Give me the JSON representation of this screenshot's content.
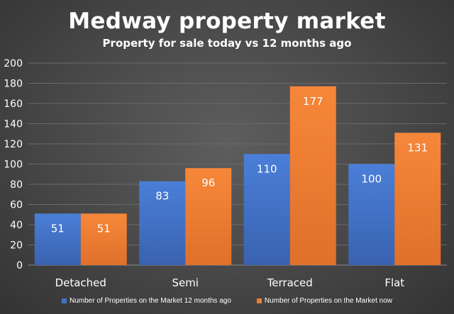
{
  "chart_data": {
    "type": "bar",
    "title": "Medway property market",
    "subtitle": "Property for sale today vs 12 months ago",
    "xlabel": "",
    "ylabel": "",
    "categories": [
      "Detached",
      "Semi",
      "Terraced",
      "Flat"
    ],
    "series": [
      {
        "name": "Number of Properties on the Market 12 months ago",
        "values": [
          51,
          83,
          110,
          100
        ],
        "color": "#4472c4"
      },
      {
        "name": "Number of Properties on the Market now",
        "values": [
          51,
          96,
          177,
          131
        ],
        "color": "#ed7d31"
      }
    ],
    "ylim": [
      0,
      200
    ],
    "yticks": [
      0,
      20,
      40,
      60,
      80,
      100,
      120,
      140,
      160,
      180,
      200
    ],
    "grid": true,
    "legend_position": "bottom",
    "data_labels": true
  }
}
